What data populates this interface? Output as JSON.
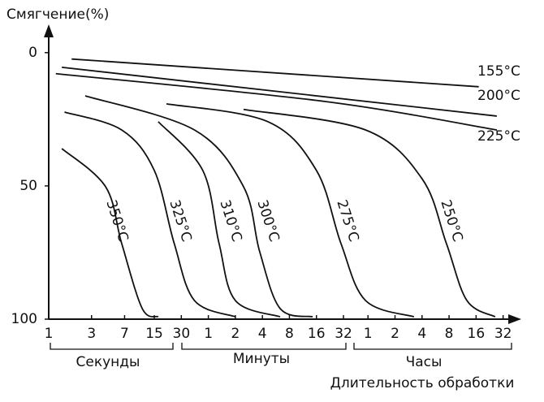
{
  "chart_data": {
    "type": "line",
    "y_label": "Смягчение(%)",
    "x_label": "Длительность обработки",
    "x_groups": [
      "Секунды",
      "Минуты",
      "Часы"
    ],
    "log_x": true,
    "xlim": [
      1,
      140000
    ],
    "ylim": [
      100,
      -10
    ],
    "xticks": [
      1,
      3,
      7,
      15,
      30,
      {
        "value": 60,
        "label": "1"
      },
      {
        "value": 120,
        "label": "2"
      },
      {
        "value": 240,
        "label": "4"
      },
      {
        "value": 480,
        "label": "8"
      },
      {
        "value": 960,
        "label": "16"
      },
      {
        "value": 1920,
        "label": "32"
      },
      {
        "value": 3600,
        "label": "1"
      },
      {
        "value": 7200,
        "label": "2"
      },
      {
        "value": 14400,
        "label": "4"
      },
      {
        "value": 28800,
        "label": "8"
      },
      {
        "value": 57600,
        "label": "16"
      },
      {
        "value": 115200,
        "label": "32"
      }
    ],
    "yticks": [
      0,
      50,
      100
    ],
    "series": [
      {
        "name": "155°C",
        "color": "#111111",
        "x": [
          1.8,
          61700
        ],
        "values": [
          2.4,
          12.8
        ]
      },
      {
        "name": "200°C",
        "color": "#111111",
        "x": [
          1.4,
          98000
        ],
        "values": [
          5.5,
          23.8
        ]
      },
      {
        "name": "225°C",
        "color": "#111111",
        "x": [
          1.2,
          1180,
          98000
        ],
        "values": [
          7.9,
          18.3,
          29
        ]
      },
      {
        "name": "250°C",
        "color": "#111111",
        "x": [
          148,
          3380,
          14400,
          26900,
          45500,
          93900
        ],
        "values": [
          21.3,
          29,
          47.3,
          71.6,
          93,
          99.1
        ]
      },
      {
        "name": "275°C",
        "color": "#111111",
        "x": [
          20.5,
          276,
          960,
          1800,
          3380,
          11700
        ],
        "values": [
          19.2,
          25.9,
          44.2,
          71.6,
          93,
          99.1
        ]
      },
      {
        "name": "300°C",
        "color": "#111111",
        "x": [
          2.55,
          42,
          148,
          224,
          378,
          870
        ],
        "values": [
          16.2,
          29,
          50.3,
          74.7,
          96,
          99.1
        ]
      },
      {
        "name": "310°C",
        "color": "#111111",
        "x": [
          16.6,
          52,
          79,
          120,
          378
        ],
        "values": [
          25.9,
          44.2,
          71.6,
          93,
          99.1
        ]
      },
      {
        "name": "325°C",
        "color": "#111111",
        "x": [
          1.5,
          6.5,
          15,
          25,
          42,
          120
        ],
        "values": [
          22.3,
          29,
          44.2,
          71.6,
          93,
          99.1
        ]
      },
      {
        "name": "350°C",
        "color": "#111111",
        "x": [
          1.4,
          4.3,
          6.5,
          11,
          16.6
        ],
        "values": [
          36,
          50.3,
          71.6,
          96,
          99.1
        ]
      }
    ]
  }
}
